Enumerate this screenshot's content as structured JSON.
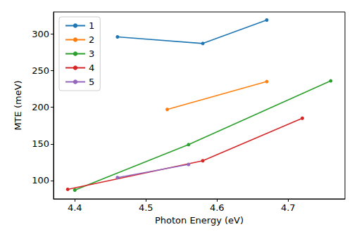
{
  "chart_data": {
    "type": "line",
    "x_label": "Photon Energy (eV)",
    "y_label": "MTE (meV)",
    "xlim": [
      4.37,
      4.78
    ],
    "xticks": [
      4.4,
      4.5,
      4.6,
      4.7
    ],
    "ylim": [
      75,
      330
    ],
    "yticks": [
      100,
      150,
      200,
      250,
      300
    ],
    "grid": false,
    "legend": "upper left",
    "marker": "circle",
    "series": [
      {
        "name": "1",
        "color": "#1f77b4",
        "x": [
          4.46,
          4.58,
          4.67
        ],
        "values": [
          296,
          287,
          319
        ]
      },
      {
        "name": "2",
        "color": "#ff7f0e",
        "x": [
          4.53,
          4.67
        ],
        "values": [
          197,
          235
        ]
      },
      {
        "name": "3",
        "color": "#2ca02c",
        "x": [
          4.4,
          4.56,
          4.76
        ],
        "values": [
          87,
          149,
          236
        ]
      },
      {
        "name": "4",
        "color": "#d62728",
        "x": [
          4.39,
          4.58,
          4.72
        ],
        "values": [
          88,
          127,
          185
        ]
      },
      {
        "name": "5",
        "color": "#9467bd",
        "x": [
          4.46,
          4.56
        ],
        "values": [
          104,
          122
        ]
      }
    ]
  }
}
